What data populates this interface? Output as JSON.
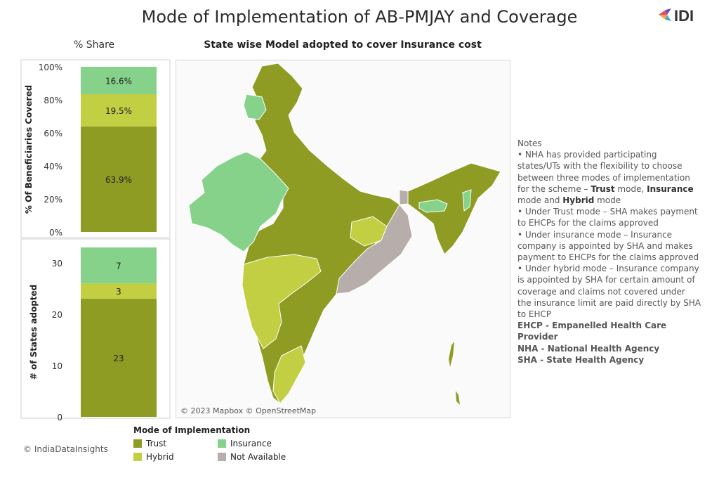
{
  "title": "Mode of Implementation of AB-PMJAY and Coverage",
  "logo_text": "IDI",
  "share_panel_title": "% Share",
  "map_panel_title": "State wise Model adopted to cover Insurance cost",
  "map_credit": "© 2023 Mapbox © OpenStreetMap",
  "copyright": "© IndiaDataInsights",
  "colors": {
    "trust": "#8f9c24",
    "hybrid": "#c2cf42",
    "insurance": "#86d28a",
    "not_available": "#b7adaa"
  },
  "chart_data": [
    {
      "type": "bar",
      "stacked": true,
      "ylabel": "% Of Beneficiaries Covered",
      "ylim": [
        0,
        100
      ],
      "yticks": [
        "0%",
        "20%",
        "40%",
        "60%",
        "80%",
        "100%"
      ],
      "series": [
        {
          "name": "Trust",
          "values": [
            63.9
          ],
          "label": "63.9%"
        },
        {
          "name": "Hybrid",
          "values": [
            19.5
          ],
          "label": "19.5%"
        },
        {
          "name": "Insurance",
          "values": [
            16.6
          ],
          "label": "16.6%"
        }
      ]
    },
    {
      "type": "bar",
      "stacked": true,
      "ylabel": "# of States adopted",
      "ylim": [
        0,
        33
      ],
      "yticks": [
        "0",
        "10",
        "20",
        "30"
      ],
      "series": [
        {
          "name": "Trust",
          "values": [
            23
          ],
          "label": "23"
        },
        {
          "name": "Hybrid",
          "values": [
            3
          ],
          "label": "3"
        },
        {
          "name": "Insurance",
          "values": [
            7
          ],
          "label": "7"
        }
      ]
    }
  ],
  "legend": {
    "title": "Mode of Implementation",
    "items": [
      {
        "label": "Trust",
        "color": "#8f9c24"
      },
      {
        "label": "Insurance",
        "color": "#86d28a"
      },
      {
        "label": "Hybrid",
        "color": "#c2cf42"
      },
      {
        "label": "Not Available",
        "color": "#b7adaa"
      }
    ]
  },
  "notes": {
    "heading": "Notes",
    "line1_pre": "• NHA has provided participating states/UTs with the flexibility to choose between three modes of implementation for the scheme –",
    "line1_trust": "Trust",
    "line1_mid1": "mode,",
    "line1_insurance": "Insurance",
    "line1_mid2": "mode and",
    "line1_hybrid": "Hybrid",
    "line1_end": "mode",
    "line2": "• Under Trust mode – SHA makes payment to EHCPs for the claims approved",
    "line3": "• Under insurance mode – Insurance company is appointed by SHA and makes payment to EHCPs for the claims approved",
    "line4": "• Under hybrid mode – Insurance company is appointed by SHA for certain amount of coverage and claims not covered under the insurance limit are paid directly by SHA to EHCP",
    "abbr1": "EHCP - Empanelled Health Care Provider",
    "abbr2": "NHA - National Health Agency",
    "abbr3": "SHA - State Health Agency"
  }
}
